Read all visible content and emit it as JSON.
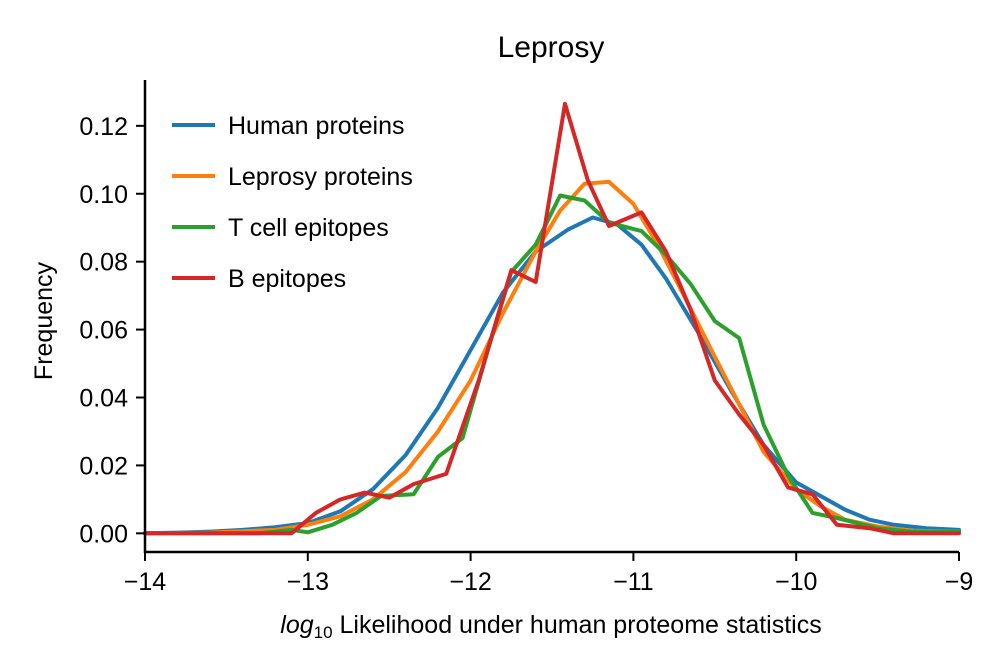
{
  "chart_data": {
    "type": "line",
    "title": "Leprosy",
    "xlabel_italic": "log",
    "xlabel_sub": "10",
    "xlabel_rest": " Likelihood under human proteome statistics",
    "ylabel": "Frequency",
    "xlim": [
      -14,
      -9
    ],
    "ylim": [
      -0.0055,
      0.1335
    ],
    "xticks": [
      -14,
      -13,
      -12,
      -11,
      -10,
      -9
    ],
    "xtick_labels": [
      "−14",
      "−13",
      "−12",
      "−11",
      "−10",
      "−9"
    ],
    "yticks": [
      0,
      0.02,
      0.04,
      0.06,
      0.08,
      0.1,
      0.12
    ],
    "ytick_labels": [
      "0.00",
      "0.02",
      "0.04",
      "0.06",
      "0.08",
      "0.10",
      "0.12"
    ],
    "grid": false,
    "legend_position": "top-left",
    "series": [
      {
        "name": "Human proteins",
        "color": "#1f77b4",
        "x": [
          -14,
          -13.8,
          -13.6,
          -13.4,
          -13.2,
          -13.0,
          -12.8,
          -12.6,
          -12.4,
          -12.2,
          -12.0,
          -11.8,
          -11.6,
          -11.4,
          -11.25,
          -11.1,
          -10.95,
          -10.8,
          -10.6,
          -10.4,
          -10.2,
          -10.0,
          -9.85,
          -9.7,
          -9.55,
          -9.4,
          -9.2,
          -9.0
        ],
        "values": [
          0.0,
          0.0002,
          0.0005,
          0.001,
          0.0018,
          0.003,
          0.0065,
          0.013,
          0.023,
          0.037,
          0.054,
          0.071,
          0.083,
          0.0895,
          0.093,
          0.091,
          0.085,
          0.075,
          0.059,
          0.042,
          0.026,
          0.015,
          0.011,
          0.007,
          0.004,
          0.0025,
          0.0015,
          0.001
        ]
      },
      {
        "name": "Leprosy proteins",
        "color": "#ff7f0e",
        "x": [
          -14,
          -13.6,
          -13.2,
          -13.0,
          -12.8,
          -12.6,
          -12.4,
          -12.2,
          -12.0,
          -11.8,
          -11.6,
          -11.45,
          -11.3,
          -11.15,
          -11.0,
          -10.85,
          -10.7,
          -10.5,
          -10.35,
          -10.2,
          -10.0,
          -9.85,
          -9.7,
          -9.5,
          -9.3,
          -9.0
        ],
        "values": [
          0.0,
          0.0002,
          0.001,
          0.0025,
          0.005,
          0.01,
          0.018,
          0.03,
          0.045,
          0.065,
          0.083,
          0.095,
          0.103,
          0.1035,
          0.097,
          0.085,
          0.071,
          0.052,
          0.038,
          0.024,
          0.013,
          0.008,
          0.004,
          0.002,
          0.0008,
          0.0005
        ]
      },
      {
        "name": "T cell epitopes",
        "color": "#2ca02c",
        "x": [
          -14,
          -13.6,
          -13.3,
          -13.1,
          -13.0,
          -12.85,
          -12.7,
          -12.55,
          -12.35,
          -12.2,
          -12.05,
          -11.9,
          -11.75,
          -11.6,
          -11.45,
          -11.3,
          -11.15,
          -10.95,
          -10.8,
          -10.65,
          -10.5,
          -10.35,
          -10.2,
          -10.05,
          -9.9,
          -9.75,
          -9.5,
          -9.3,
          -9.0
        ],
        "values": [
          0.0,
          0.0,
          0.0,
          0.001,
          0.0003,
          0.0025,
          0.006,
          0.011,
          0.0115,
          0.0225,
          0.028,
          0.053,
          0.077,
          0.085,
          0.0995,
          0.098,
          0.0915,
          0.089,
          0.082,
          0.0735,
          0.0625,
          0.0575,
          0.032,
          0.017,
          0.006,
          0.0045,
          0.0015,
          0.0005,
          0.0005
        ]
      },
      {
        "name": "B epitopes",
        "color": "#d62728",
        "x": [
          -14,
          -13.5,
          -13.1,
          -13.0,
          -12.95,
          -12.8,
          -12.65,
          -12.5,
          -12.35,
          -12.15,
          -11.95,
          -11.75,
          -11.6,
          -11.42,
          -11.28,
          -11.15,
          -10.95,
          -10.8,
          -10.65,
          -10.5,
          -10.35,
          -10.2,
          -10.05,
          -9.9,
          -9.75,
          -9.55,
          -9.4,
          -9.2,
          -9.0
        ],
        "values": [
          0.0,
          0.0,
          0.0,
          0.004,
          0.006,
          0.01,
          0.012,
          0.0105,
          0.0145,
          0.0175,
          0.045,
          0.0775,
          0.074,
          0.1265,
          0.104,
          0.0905,
          0.0945,
          0.083,
          0.066,
          0.045,
          0.035,
          0.026,
          0.0135,
          0.0115,
          0.0025,
          0.0015,
          0.0,
          0.0,
          0.0
        ]
      }
    ]
  }
}
